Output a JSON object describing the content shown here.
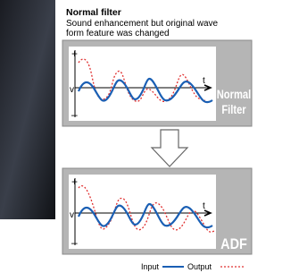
{
  "header": {
    "title": "Normal filter",
    "description": [
      "Sound enhancement but original wave",
      "form feature was changed"
    ]
  },
  "panels": [
    {
      "label": [
        "Normal",
        "Filter"
      ],
      "axis": {
        "plus": "+",
        "v": "v",
        "minus": "–",
        "t": "t"
      }
    },
    {
      "label": [
        "ADF"
      ],
      "axis": {
        "plus": "+",
        "v": "v",
        "minus": "–",
        "t": "t"
      }
    }
  ],
  "legend": {
    "input": "Input",
    "output": "Output"
  }
}
